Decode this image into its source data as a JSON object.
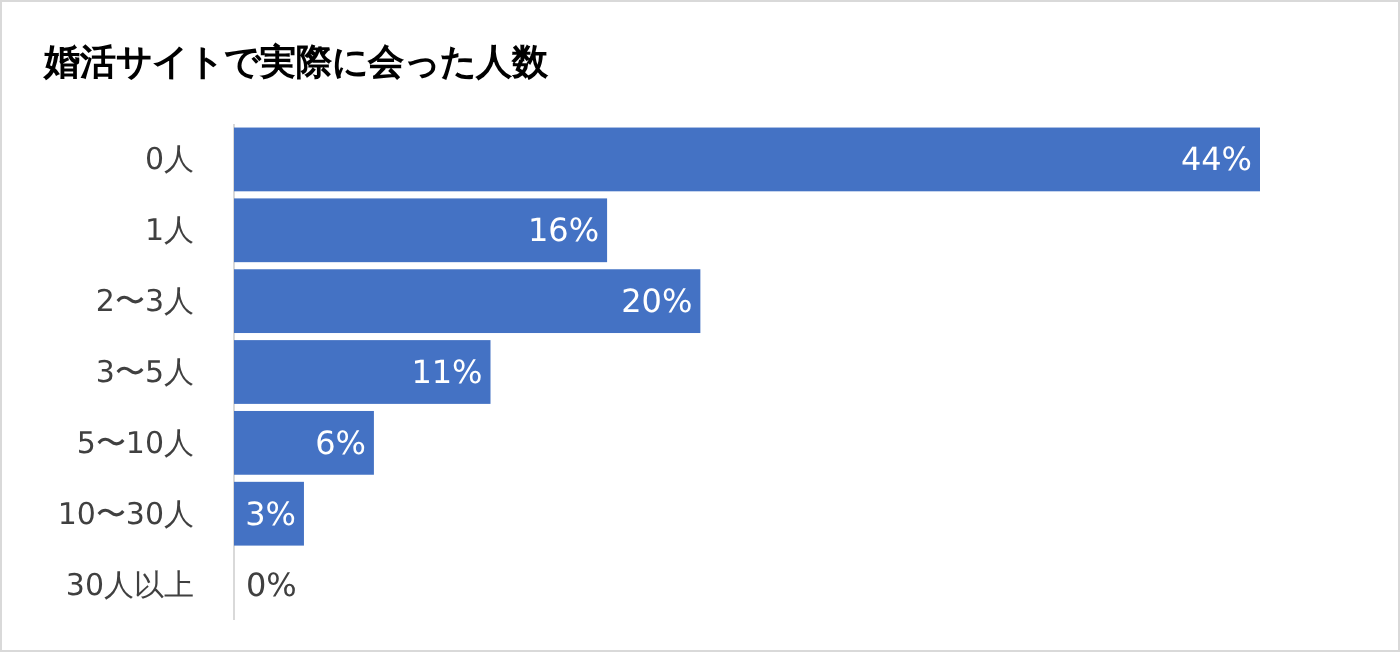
{
  "chart_data": {
    "type": "bar",
    "orientation": "horizontal",
    "title": "婚活サイトで実際に会った人数",
    "categories": [
      "0人",
      "1人",
      "2〜3人",
      "3〜5人",
      "5〜10人",
      "10〜30人",
      "30人以上"
    ],
    "values": [
      44,
      16,
      20,
      11,
      6,
      3,
      0
    ],
    "value_labels": [
      "44%",
      "16%",
      "20%",
      "11%",
      "6%",
      "3%",
      "0%"
    ],
    "color": "#4472c4"
  }
}
